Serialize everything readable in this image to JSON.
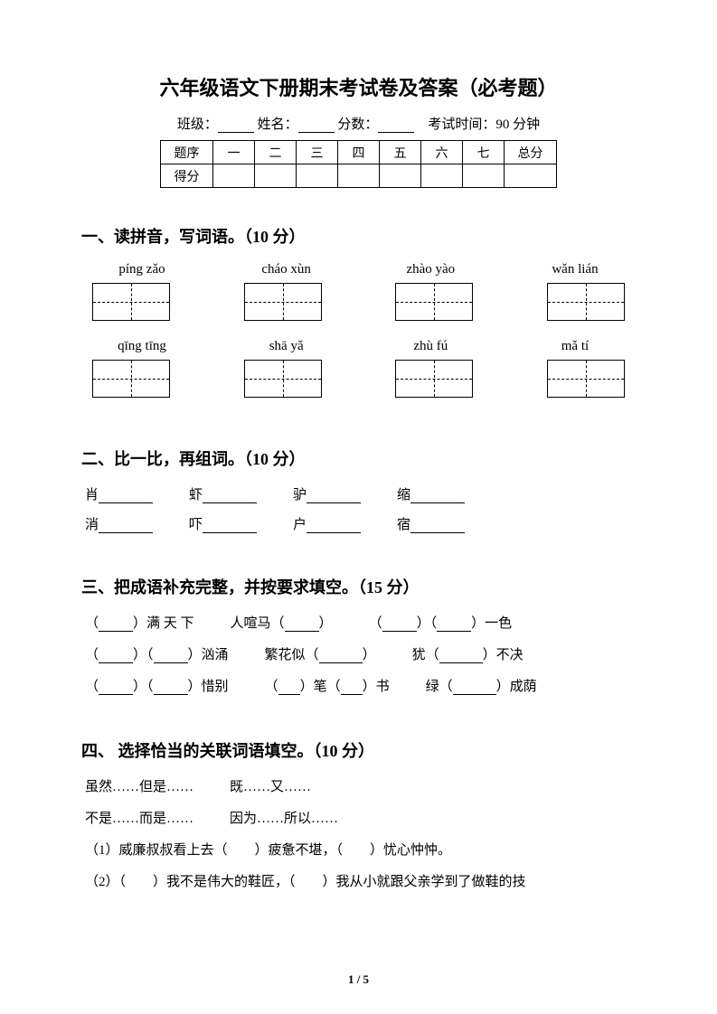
{
  "title": "六年级语文下册期末考试卷及答案（必考题）",
  "info": {
    "class_label": "班级：",
    "name_label": "姓名：",
    "score_label": "分数：",
    "time_label": "考试时间：90 分钟"
  },
  "score_table": {
    "row1": [
      "题序",
      "一",
      "二",
      "三",
      "四",
      "五",
      "六",
      "七",
      "总分"
    ],
    "row2_label": "得分"
  },
  "section1": {
    "heading": "一、读拼音，写词语。（10 分）",
    "pinyin_row1": [
      "píng zǎo",
      "cháo xùn",
      "zhào yào",
      "wǎn lián"
    ],
    "pinyin_row2": [
      "qīng tīng",
      "shā yǎ",
      "zhù fú",
      "mǎ tí"
    ]
  },
  "section2": {
    "heading": "二、比一比，再组词。（10 分）",
    "row1": [
      "肖",
      "虾",
      "驴",
      "缩"
    ],
    "row2": [
      "消",
      "吓",
      "户",
      "宿"
    ]
  },
  "section3": {
    "heading": "三、把成语补充完整，并按要求填空。（15 分）",
    "l1_a": "）满 天 下",
    "l1_b": "人喧马（",
    "l1_c": "）一色",
    "l2_a": "）汹涌",
    "l2_b": "繁花似（",
    "l2_c": "犹（",
    "l2_d": "）不决",
    "l3_a": "）惜别",
    "l3_b": "）笔（",
    "l3_c": "）书",
    "l3_d": "绿（",
    "l3_e": "）成荫"
  },
  "section4": {
    "heading": "四、 选择恰当的关联词语填空。（10 分）",
    "opt1a": "虽然……但是……",
    "opt1b": "既……又……",
    "opt2a": "不是……而是……",
    "opt2b": "因为……所以……",
    "q1": "（1）威廉叔叔看上去（　　）疲惫不堪，（　　）忧心忡忡。",
    "q2": "（2）（　　）我不是伟大的鞋匠，（　　）我从小就跟父亲学到了做鞋的技"
  },
  "page_number": "1 / 5"
}
